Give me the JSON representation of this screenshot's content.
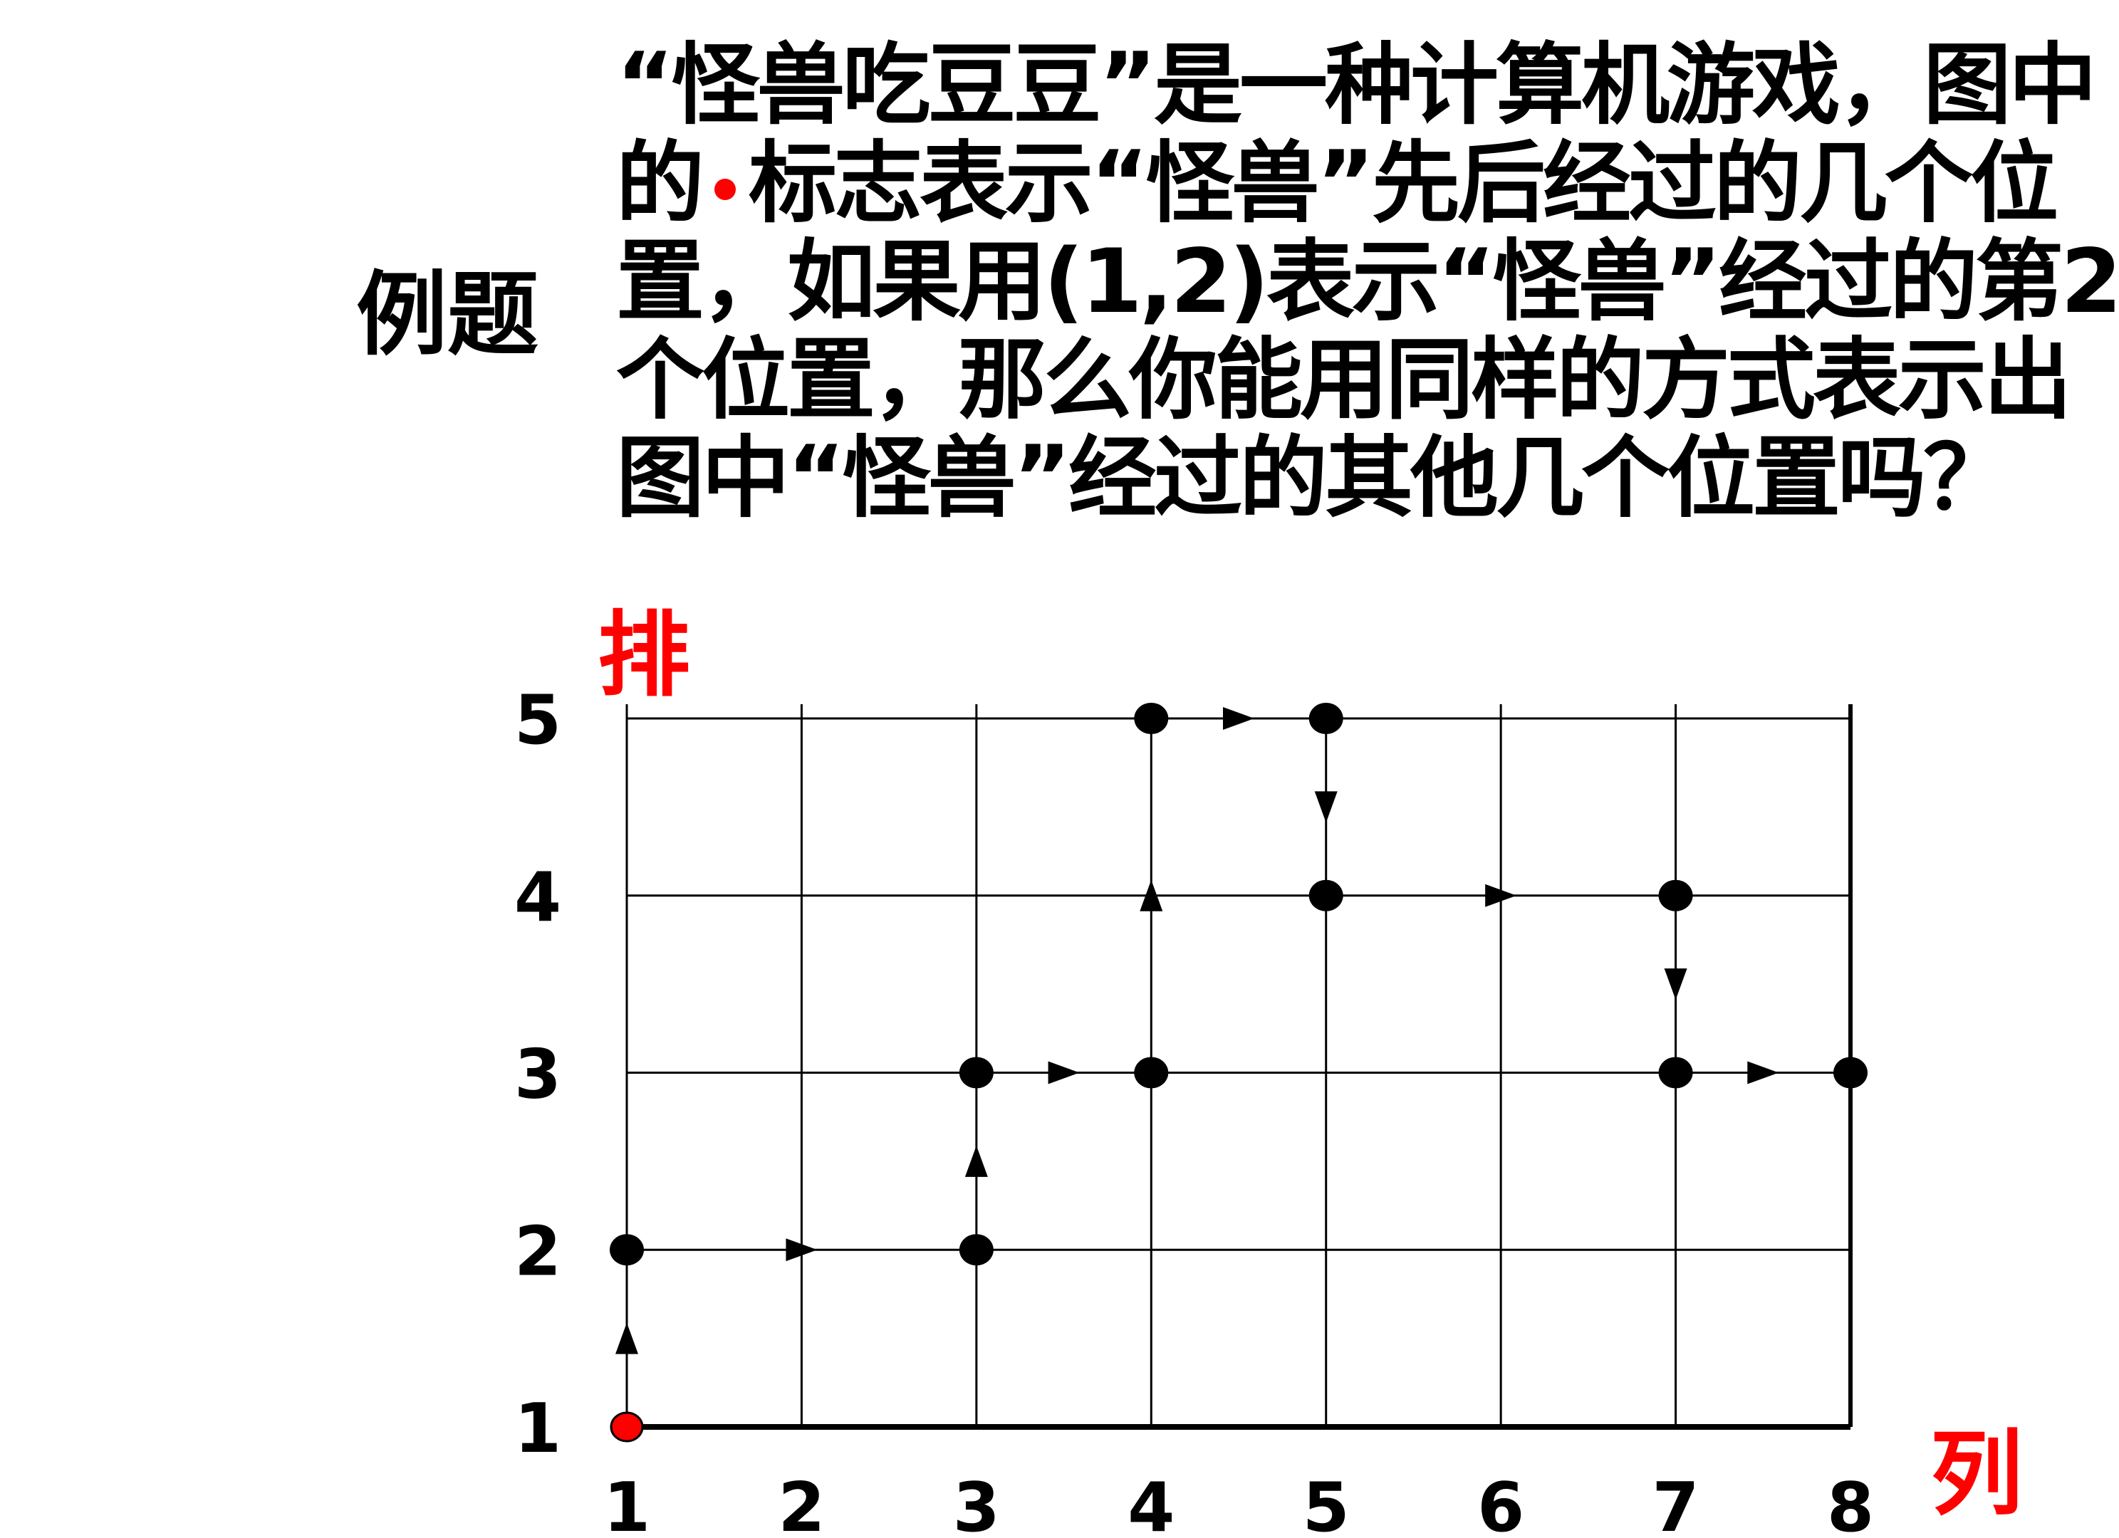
{
  "example_label": "例题",
  "problem_lines": [
    {
      "text": "“怪兽吃豆豆”是一种计算机游戏，图中"
    },
    {
      "before": "的",
      "after": "标志表示“怪兽”先后经过的几个位"
    },
    {
      "text": "置，如果用(1,2)表示“怪兽”经过的第2"
    },
    {
      "text": "个位置，那么你能用同样的方式表示出"
    },
    {
      "text": "图中“怪兽”经过的其他几个位置吗？"
    }
  ],
  "colors": {
    "marker_start": "#ff0000",
    "axis_title": "#ff0000",
    "grid": "#000000",
    "path": "#000000"
  },
  "chart_data": {
    "type": "grid-path",
    "x_title": "列",
    "y_title": "排",
    "x_ticks": [
      "1",
      "2",
      "3",
      "4",
      "5",
      "6",
      "7",
      "8"
    ],
    "y_ticks": [
      "1",
      "2",
      "3",
      "4",
      "5"
    ],
    "xlim": [
      1,
      8
    ],
    "ylim": [
      1,
      5
    ],
    "grid": true,
    "path": [
      [
        1,
        1
      ],
      [
        1,
        2
      ],
      [
        3,
        2
      ],
      [
        3,
        3
      ],
      [
        4,
        3
      ],
      [
        4,
        5
      ],
      [
        5,
        5
      ],
      [
        5,
        4
      ],
      [
        7,
        4
      ],
      [
        7,
        3
      ],
      [
        8,
        3
      ]
    ],
    "start_point": [
      1,
      1
    ]
  }
}
